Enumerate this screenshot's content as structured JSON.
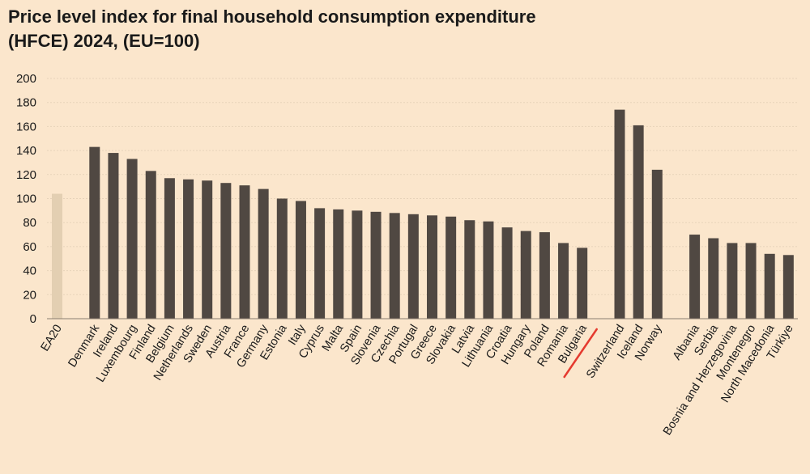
{
  "title_lines": [
    "Price level index for final household consumption expenditure",
    "(HFCE) 2024, (EU=100)"
  ],
  "colors": {
    "background": "#fbe6cc",
    "bar": "#504842",
    "highlight_bar": "#e3cfb2",
    "annotation_line": "#e53a2f",
    "grid": "#e7d3ba",
    "text": "#1a1a1a"
  },
  "chart_data": {
    "type": "bar",
    "title": "Price level index for final household consumption expenditure (HFCE) 2024, (EU=100)",
    "ylim": [
      0,
      200
    ],
    "yticks": [
      0,
      20,
      40,
      60,
      80,
      100,
      120,
      140,
      160,
      180,
      200
    ],
    "grid": true,
    "highlighted_category": "EA20",
    "annotated_category": "Bulgaria",
    "groups": [
      [
        {
          "label": "EA20",
          "value": 104
        }
      ],
      [
        {
          "label": "Denmark",
          "value": 143
        },
        {
          "label": "Ireland",
          "value": 138
        },
        {
          "label": "Luxembourg",
          "value": 133
        },
        {
          "label": "Finland",
          "value": 123
        },
        {
          "label": "Belgium",
          "value": 117
        },
        {
          "label": "Netherlands",
          "value": 116
        },
        {
          "label": "Sweden",
          "value": 115
        },
        {
          "label": "Austria",
          "value": 113
        },
        {
          "label": "France",
          "value": 111
        },
        {
          "label": "Germany",
          "value": 108
        },
        {
          "label": "Estonia",
          "value": 100
        },
        {
          "label": "Italy",
          "value": 98
        },
        {
          "label": "Cyprus",
          "value": 92
        },
        {
          "label": "Malta",
          "value": 91
        },
        {
          "label": "Spain",
          "value": 90
        },
        {
          "label": "Slovenia",
          "value": 89
        },
        {
          "label": "Czechia",
          "value": 88
        },
        {
          "label": "Portugal",
          "value": 87
        },
        {
          "label": "Greece",
          "value": 86
        },
        {
          "label": "Slovakia",
          "value": 85
        },
        {
          "label": "Latvia",
          "value": 82
        },
        {
          "label": "Lithuania",
          "value": 81
        },
        {
          "label": "Croatia",
          "value": 76
        },
        {
          "label": "Hungary",
          "value": 73
        },
        {
          "label": "Poland",
          "value": 72
        },
        {
          "label": "Romania",
          "value": 63
        },
        {
          "label": "Bulgaria",
          "value": 59
        }
      ],
      [
        {
          "label": "Switzerland",
          "value": 174
        },
        {
          "label": "Iceland",
          "value": 161
        },
        {
          "label": "Norway",
          "value": 124
        }
      ],
      [
        {
          "label": "Albania",
          "value": 70
        },
        {
          "label": "Serbia",
          "value": 67
        },
        {
          "label": "Bosnia and Herzegovina",
          "value": 63
        },
        {
          "label": "Montenegro",
          "value": 63
        },
        {
          "label": "North Macedonia",
          "value": 54
        },
        {
          "label": "Türkiye",
          "value": 53
        }
      ]
    ]
  }
}
